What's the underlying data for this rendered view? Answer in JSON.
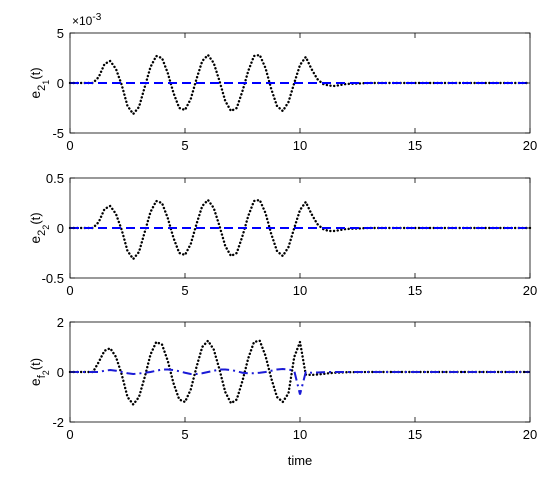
{
  "chart_data": [
    {
      "type": "line",
      "ylabel": {
        "main": "e",
        "sub": "2",
        "subsub": "1",
        "suffix": "(t)"
      },
      "y_multiplier": {
        "base": "×10",
        "exponent": "-3"
      },
      "x": [
        0,
        0.25,
        0.5,
        0.75,
        1,
        1.25,
        1.5,
        1.75,
        2,
        2.25,
        2.5,
        2.75,
        3,
        3.25,
        3.5,
        3.75,
        4,
        4.25,
        4.5,
        4.75,
        5,
        5.25,
        5.5,
        5.75,
        6,
        6.25,
        6.5,
        6.75,
        7,
        7.25,
        7.5,
        7.75,
        8,
        8.25,
        8.5,
        8.75,
        9,
        9.25,
        9.5,
        9.75,
        10,
        10.25,
        10.5,
        10.75,
        11,
        11.25,
        11.5,
        11.75,
        12,
        13,
        14,
        15,
        16,
        17,
        18,
        19,
        20
      ],
      "series": [
        {
          "color": "#000000",
          "style": "dotted",
          "values": [
            0,
            0,
            0,
            0,
            0,
            0.6,
            1.9,
            2.2,
            1.4,
            -0.2,
            -2.3,
            -3.1,
            -2.4,
            -0.4,
            1.6,
            2.7,
            2.5,
            1.0,
            -1.0,
            -2.5,
            -2.7,
            -1.6,
            0.4,
            2.2,
            2.8,
            2.0,
            0.2,
            -1.8,
            -2.8,
            -2.5,
            -0.8,
            1.2,
            2.7,
            2.8,
            1.5,
            -0.6,
            -2.3,
            -2.8,
            -1.9,
            0,
            1.8,
            2.6,
            1.4,
            0.4,
            -0.1,
            -0.25,
            -0.3,
            -0.2,
            -0.1,
            0,
            0,
            0,
            0,
            0,
            0,
            0,
            0
          ]
        },
        {
          "color": "#0000ff",
          "style": "dashed",
          "values": [
            0,
            0,
            0,
            0,
            0,
            0,
            0,
            0,
            0,
            0,
            0,
            0,
            0,
            0,
            0,
            0,
            0,
            0,
            0,
            0,
            0,
            0,
            0,
            0,
            0,
            0,
            0,
            0,
            0,
            0,
            0,
            0,
            0,
            0,
            0,
            0,
            0,
            0,
            0,
            0,
            0,
            0,
            0,
            0,
            0,
            0,
            0,
            0,
            0,
            0,
            0,
            0,
            0,
            0,
            0,
            0,
            0
          ]
        }
      ],
      "xlim": [
        0,
        20
      ],
      "xticks": [
        0,
        5,
        10,
        15,
        20
      ],
      "ylim": [
        -5,
        5
      ],
      "yticks": [
        -5,
        0,
        5
      ]
    },
    {
      "type": "line",
      "ylabel": {
        "main": "e",
        "sub": "2",
        "subsub": "2",
        "suffix": "(t)"
      },
      "x": [
        0,
        0.25,
        0.5,
        0.75,
        1,
        1.25,
        1.5,
        1.75,
        2,
        2.25,
        2.5,
        2.75,
        3,
        3.25,
        3.5,
        3.75,
        4,
        4.25,
        4.5,
        4.75,
        5,
        5.25,
        5.5,
        5.75,
        6,
        6.25,
        6.5,
        6.75,
        7,
        7.25,
        7.5,
        7.75,
        8,
        8.25,
        8.5,
        8.75,
        9,
        9.25,
        9.5,
        9.75,
        10,
        10.25,
        10.5,
        10.75,
        11,
        11.25,
        11.5,
        11.75,
        12,
        13,
        14,
        15,
        16,
        17,
        18,
        19,
        20
      ],
      "series": [
        {
          "color": "#000000",
          "style": "dotted",
          "values": [
            0,
            0,
            0,
            0,
            0,
            0.06,
            0.19,
            0.22,
            0.14,
            -0.02,
            -0.23,
            -0.31,
            -0.24,
            -0.04,
            0.16,
            0.27,
            0.25,
            0.1,
            -0.1,
            -0.25,
            -0.27,
            -0.16,
            0.04,
            0.22,
            0.28,
            0.2,
            0.02,
            -0.18,
            -0.28,
            -0.25,
            -0.08,
            0.12,
            0.27,
            0.28,
            0.15,
            -0.06,
            -0.23,
            -0.28,
            -0.19,
            0,
            0.18,
            0.26,
            0.14,
            0.04,
            -0.01,
            -0.03,
            -0.03,
            -0.02,
            -0.01,
            0,
            0,
            0,
            0,
            0,
            0,
            0,
            0
          ]
        },
        {
          "color": "#0000ff",
          "style": "dashed",
          "values": [
            0,
            0,
            0,
            0,
            0,
            0,
            0,
            0,
            0,
            0,
            0,
            0,
            0,
            0,
            0,
            0,
            0,
            0,
            0,
            0,
            0,
            0,
            0,
            0,
            0,
            0,
            0,
            0,
            0,
            0,
            0,
            0,
            0,
            0,
            0,
            0,
            0,
            0,
            0,
            0,
            0,
            0,
            0,
            0,
            0,
            0,
            0,
            0,
            0,
            0,
            0,
            0,
            0,
            0,
            0,
            0,
            0
          ]
        }
      ],
      "xlim": [
        0,
        20
      ],
      "xticks": [
        0,
        5,
        10,
        15,
        20
      ],
      "ylim": [
        -0.5,
        0.5
      ],
      "yticks": [
        -0.5,
        0,
        0.5
      ]
    },
    {
      "type": "line",
      "ylabel": {
        "main": "e",
        "sub": "f",
        "subsub": "2",
        "suffix": "(t)"
      },
      "xlabel": "time",
      "x": [
        0,
        0.25,
        0.5,
        0.75,
        1,
        1.25,
        1.5,
        1.75,
        2,
        2.25,
        2.5,
        2.75,
        3,
        3.25,
        3.5,
        3.75,
        4,
        4.25,
        4.5,
        4.75,
        5,
        5.25,
        5.5,
        5.75,
        6,
        6.25,
        6.5,
        6.75,
        7,
        7.25,
        7.5,
        7.75,
        8,
        8.25,
        8.5,
        8.75,
        9,
        9.25,
        9.5,
        9.75,
        10,
        10.25,
        10.5,
        10.75,
        11,
        11.25,
        11.5,
        11.75,
        12,
        13,
        14,
        15,
        16,
        17,
        18,
        19,
        20
      ],
      "series": [
        {
          "color": "#000000",
          "style": "dotted",
          "values": [
            0,
            0,
            0,
            0,
            0,
            0.4,
            0.85,
            0.95,
            0.6,
            -0.1,
            -1.0,
            -1.3,
            -1.0,
            -0.2,
            0.7,
            1.2,
            1.1,
            0.45,
            -0.45,
            -1.1,
            -1.2,
            -0.7,
            0.2,
            1.0,
            1.25,
            0.9,
            0.1,
            -0.8,
            -1.25,
            -1.1,
            -0.35,
            0.55,
            1.2,
            1.25,
            0.65,
            -0.25,
            -1.0,
            -1.2,
            -0.85,
            0.6,
            1.2,
            -0.1,
            -0.12,
            -0.1,
            -0.08,
            -0.05,
            -0.03,
            -0.02,
            -0.01,
            0,
            0,
            0,
            0,
            0,
            0,
            0,
            0
          ]
        },
        {
          "color": "#1a1ad6",
          "style": "dashdot",
          "values": [
            0,
            0,
            0,
            0,
            0,
            0,
            0.05,
            0.08,
            0.05,
            0,
            -0.05,
            -0.08,
            -0.06,
            -0.03,
            0,
            0.05,
            0.1,
            0.1,
            0.08,
            0.03,
            -0.03,
            -0.08,
            -0.08,
            -0.05,
            0,
            0.05,
            0.1,
            0.1,
            0.08,
            0.03,
            -0.03,
            -0.05,
            -0.05,
            -0.03,
            0,
            0.05,
            0.1,
            0.12,
            0.1,
            0.05,
            -0.9,
            0,
            -0.03,
            -0.02,
            -0.01,
            0,
            0,
            0,
            0,
            0,
            0,
            0,
            0,
            0,
            0,
            0,
            0
          ]
        }
      ],
      "xlim": [
        0,
        20
      ],
      "xticks": [
        0,
        5,
        10,
        15,
        20
      ],
      "ylim": [
        -2,
        2
      ],
      "yticks": [
        -2,
        0,
        2
      ]
    }
  ]
}
